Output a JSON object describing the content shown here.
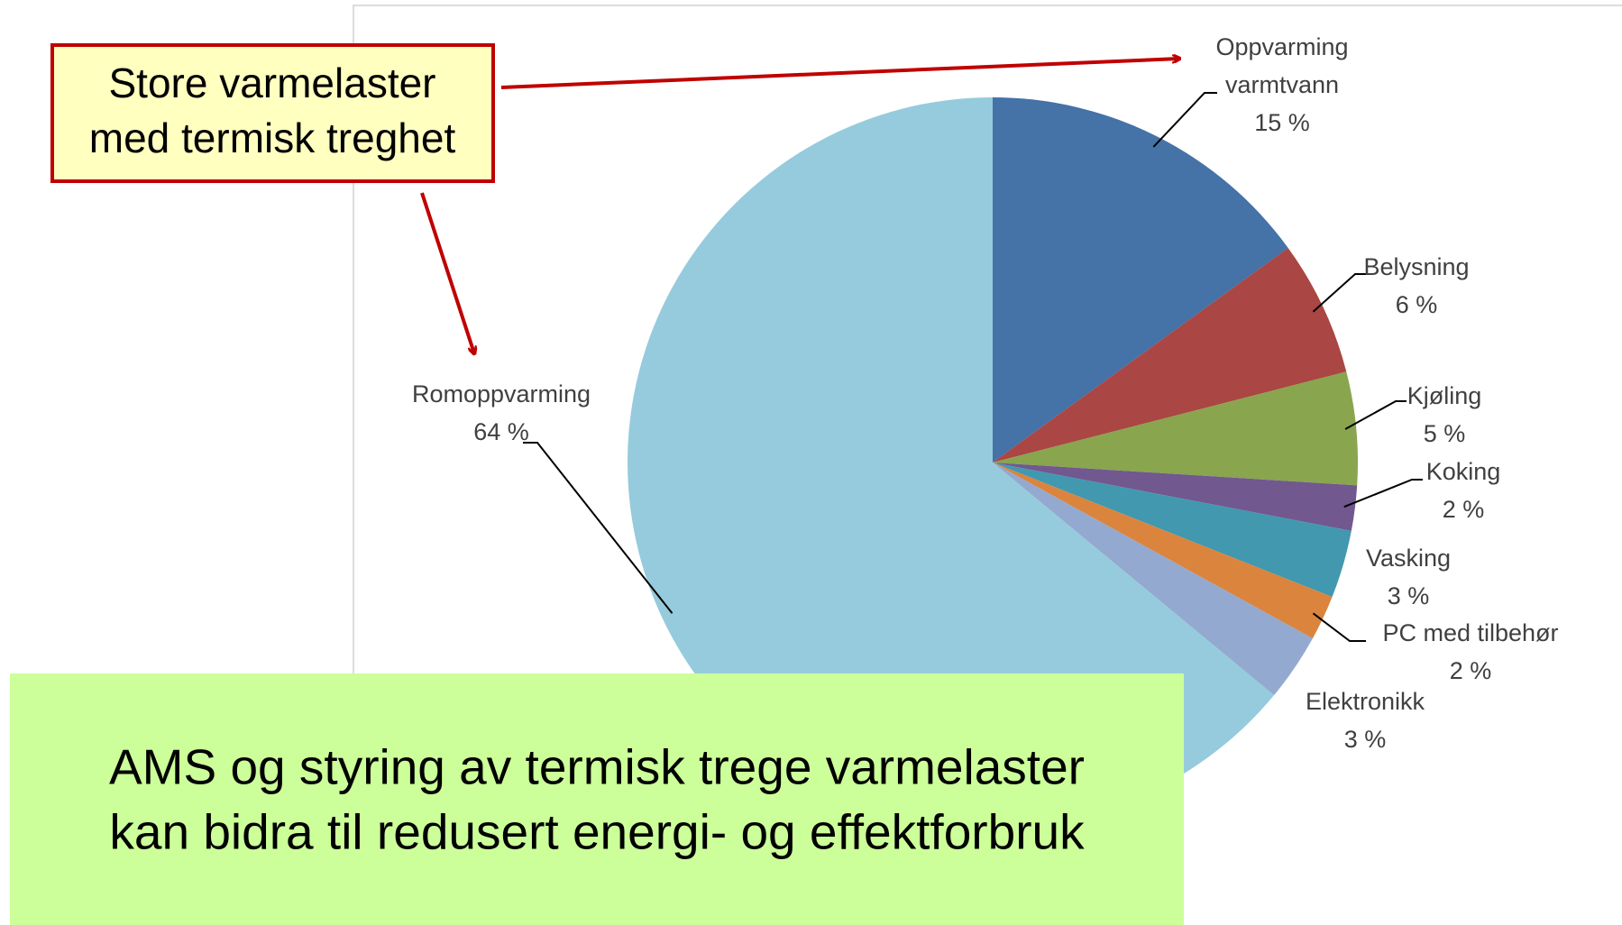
{
  "chart_data": {
    "type": "pie",
    "categories": [
      "Oppvarming varmtvann",
      "Belysning",
      "Kjøling",
      "Koking",
      "Vasking",
      "PC med tilbehør",
      "Elektronikk",
      "Romoppvarming"
    ],
    "values": [
      15,
      6,
      5,
      2,
      3,
      2,
      3,
      64
    ],
    "value_labels": [
      "15 %",
      "6 %",
      "5 %",
      "2 %",
      "3 %",
      "2 %",
      "3 %",
      "64 %"
    ],
    "colors": [
      "#4572a7",
      "#aa4643",
      "#89a54e",
      "#71588f",
      "#4198af",
      "#db843d",
      "#93a9cf",
      "#96cbdd"
    ],
    "annotations": [
      {
        "lines": [
          "Store varmelaster",
          "med termisk treghet"
        ]
      },
      {
        "lines": [
          "AMS og styring av termisk trege varmelaster",
          "kan bidra til redusert energi- og effektforbruk"
        ]
      }
    ]
  }
}
